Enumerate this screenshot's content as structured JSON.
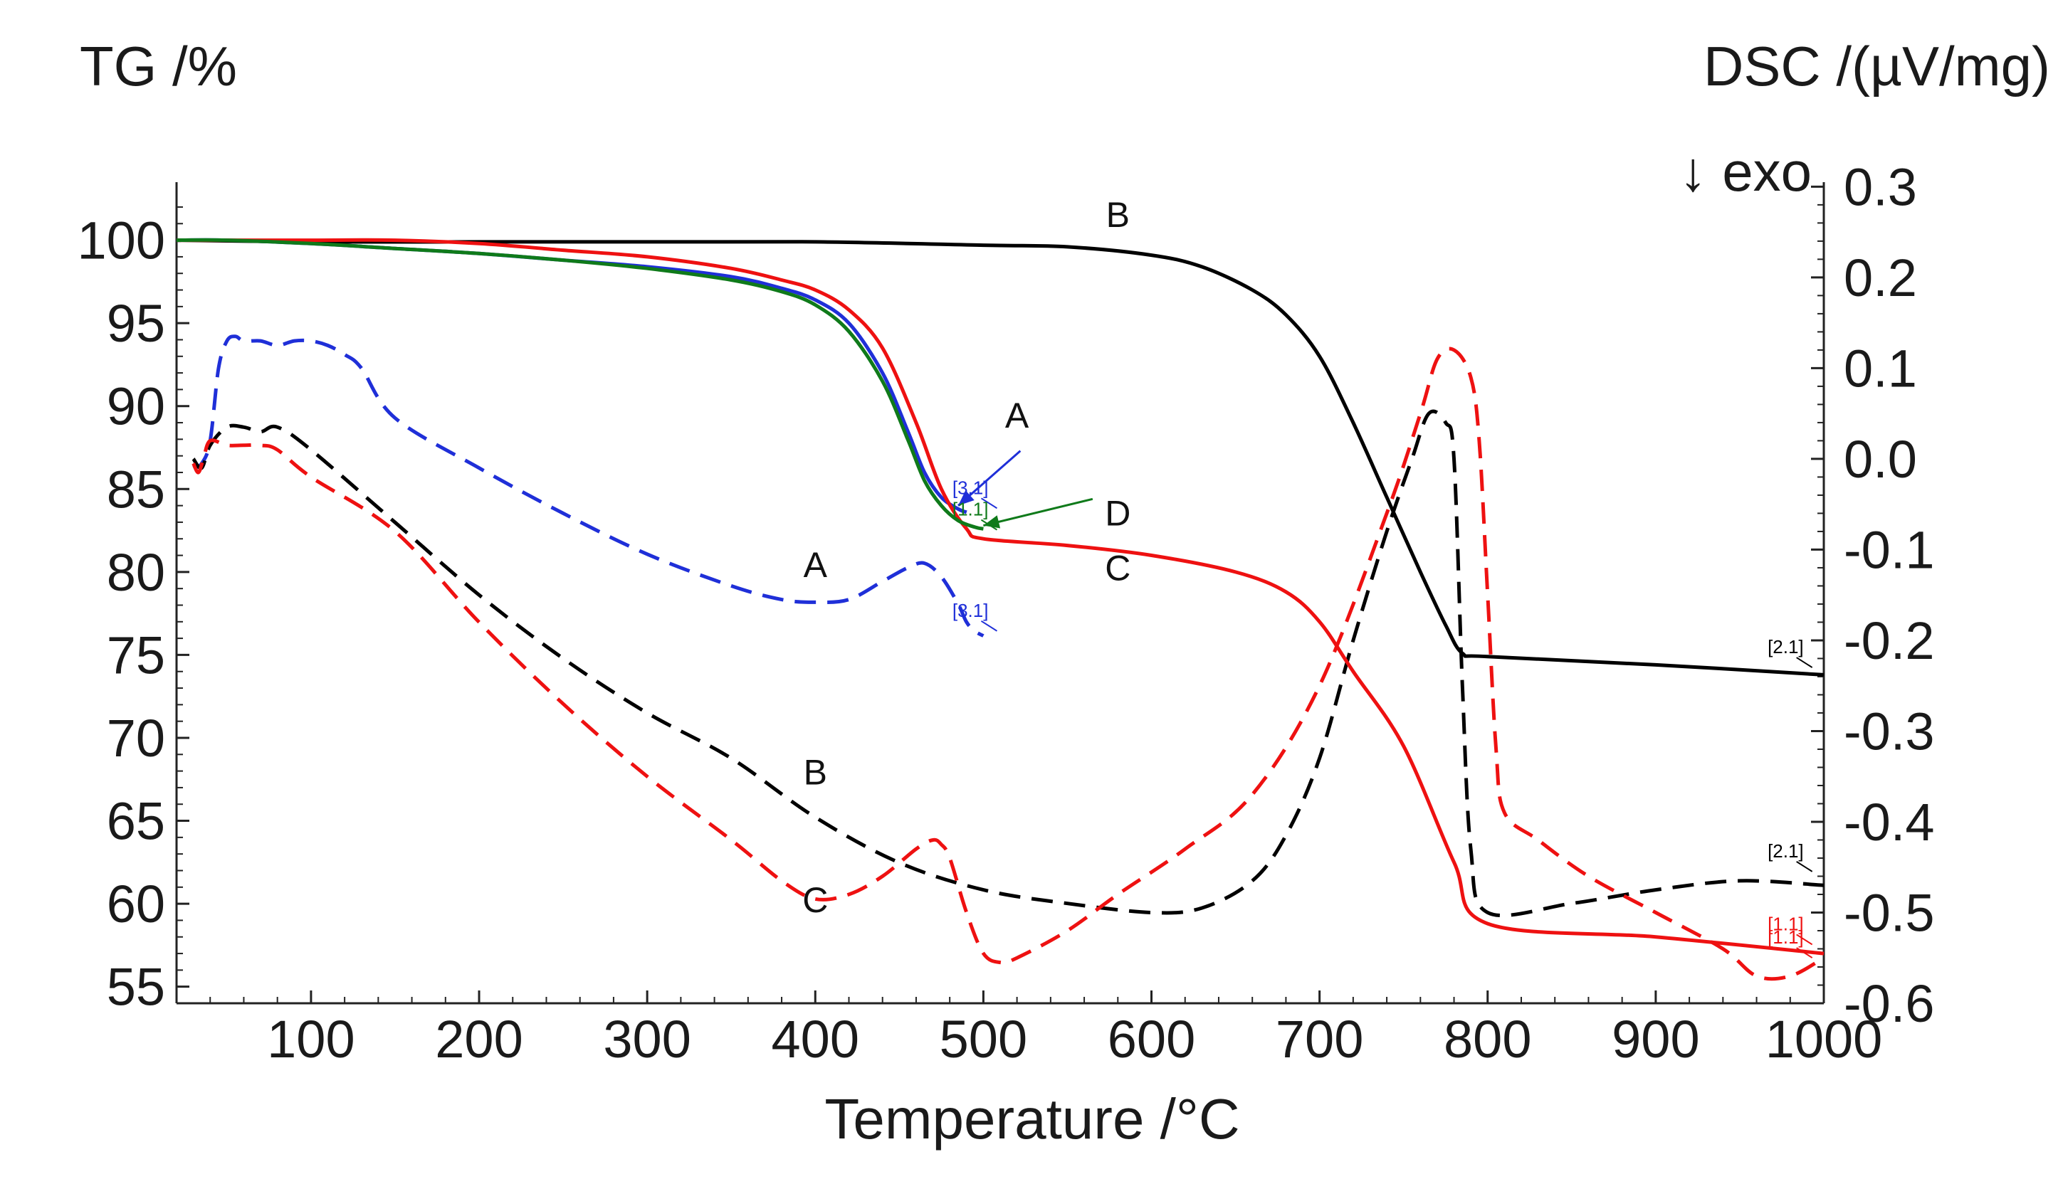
{
  "chart_data": {
    "type": "line",
    "title": "",
    "xlabel": "Temperature /°C",
    "ylabel_left": "TG /%",
    "ylabel_right": "DSC /(µV/mg)",
    "exo_label": "↓ exo",
    "xlim": [
      20,
      1000
    ],
    "ylim_left": [
      54,
      103.5
    ],
    "ylim_right": [
      -0.6,
      0.305
    ],
    "x_ticks": [
      100,
      200,
      300,
      400,
      500,
      600,
      700,
      800,
      900,
      1000
    ],
    "y_left_ticks": [
      55,
      60,
      65,
      70,
      75,
      80,
      85,
      90,
      95,
      100
    ],
    "y_right_ticks": [
      -0.6,
      -0.5,
      -0.4,
      -0.3,
      -0.2,
      -0.1,
      0.0,
      0.1,
      0.2,
      0.3
    ],
    "y_right_tick_labels": [
      "-0.6",
      "-0.5",
      "-0.4",
      "-0.3",
      "-0.2",
      "-0.1",
      "0.0",
      "0.1",
      "0.2",
      "0.3"
    ],
    "tg_series": [
      {
        "name": "TG A",
        "color": "#1f2fd8",
        "axis": "left",
        "x": [
          20,
          50,
          100,
          150,
          200,
          250,
          300,
          350,
          380,
          400,
          420,
          440,
          455,
          465,
          475,
          485,
          490
        ],
        "y": [
          100,
          100,
          99.8,
          99.5,
          99.2,
          98.8,
          98.4,
          97.8,
          97.1,
          96.4,
          95,
          92,
          88.5,
          86,
          84.5,
          83.8,
          83.6
        ]
      },
      {
        "name": "TG B",
        "color": "#000000",
        "axis": "left",
        "x": [
          20,
          100,
          200,
          300,
          400,
          500,
          550,
          600,
          630,
          660,
          680,
          700,
          720,
          740,
          760,
          775,
          785,
          800,
          900,
          1000
        ],
        "y": [
          100,
          99.9,
          99.9,
          99.9,
          99.9,
          99.7,
          99.6,
          99.1,
          98.4,
          97,
          95.5,
          93,
          89,
          84.5,
          80,
          76.8,
          75.1,
          74.9,
          74.4,
          73.8
        ]
      },
      {
        "name": "TG C",
        "color": "#ee1111",
        "axis": "left",
        "x": [
          20,
          100,
          150,
          200,
          250,
          300,
          350,
          380,
          400,
          420,
          440,
          460,
          475,
          490,
          500,
          550,
          600,
          650,
          680,
          700,
          720,
          750,
          780,
          800,
          900,
          1000
        ],
        "y": [
          100,
          100,
          100,
          99.8,
          99.4,
          99,
          98.3,
          97.6,
          97,
          95.8,
          93.5,
          89,
          85,
          82.6,
          82,
          81.6,
          81,
          80,
          78.8,
          77,
          74,
          69.5,
          62.5,
          58.8,
          58,
          57
        ]
      },
      {
        "name": "TG D",
        "color": "#0f7a1a",
        "axis": "left",
        "x": [
          20,
          50,
          100,
          150,
          200,
          250,
          300,
          350,
          380,
          400,
          420,
          440,
          455,
          465,
          475,
          485,
          495,
          500
        ],
        "y": [
          100,
          100,
          99.8,
          99.5,
          99.2,
          98.8,
          98.3,
          97.6,
          96.9,
          96.1,
          94.5,
          91.5,
          88,
          85.5,
          84,
          83.1,
          82.7,
          82.6
        ]
      }
    ],
    "dsc_series": [
      {
        "name": "DSC A",
        "color": "#1f2fd8",
        "axis": "right",
        "x": [
          30,
          35,
          40,
          45,
          50,
          55,
          60,
          70,
          80,
          90,
          100,
          110,
          120,
          130,
          150,
          200,
          250,
          300,
          350,
          380,
          400,
          420,
          440,
          455,
          465,
          475,
          485,
          490,
          495,
          500
        ],
        "y": [
          -0.01,
          -0.005,
          0.02,
          0.1,
          0.13,
          0.135,
          0.13,
          0.13,
          0.125,
          0.13,
          0.13,
          0.125,
          0.115,
          0.1,
          0.045,
          -0.01,
          -0.06,
          -0.105,
          -0.14,
          -0.155,
          -0.158,
          -0.155,
          -0.135,
          -0.12,
          -0.115,
          -0.13,
          -0.16,
          -0.18,
          -0.19,
          -0.195
        ]
      },
      {
        "name": "DSC B",
        "color": "#000000",
        "axis": "right",
        "x": [
          30,
          35,
          40,
          50,
          60,
          70,
          80,
          100,
          150,
          200,
          250,
          300,
          350,
          400,
          450,
          500,
          550,
          600,
          630,
          660,
          680,
          700,
          720,
          740,
          755,
          765,
          775,
          780,
          785,
          790,
          800,
          850,
          900,
          950,
          1000
        ],
        "y": [
          0.0,
          -0.01,
          0.015,
          0.035,
          0.035,
          0.03,
          0.035,
          0.01,
          -0.07,
          -0.15,
          -0.22,
          -0.28,
          -0.33,
          -0.395,
          -0.445,
          -0.475,
          -0.49,
          -0.5,
          -0.495,
          -0.465,
          -0.415,
          -0.33,
          -0.2,
          -0.08,
          0.0,
          0.05,
          0.04,
          0.0,
          -0.25,
          -0.43,
          -0.5,
          -0.49,
          -0.475,
          -0.465,
          -0.47
        ]
      },
      {
        "name": "DSC C",
        "color": "#ee1111",
        "axis": "right",
        "x": [
          30,
          33,
          36,
          40,
          50,
          60,
          70,
          80,
          100,
          150,
          200,
          250,
          300,
          350,
          380,
          400,
          420,
          440,
          460,
          470,
          475,
          480,
          490,
          500,
          510,
          520,
          550,
          580,
          620,
          660,
          700,
          740,
          760,
          770,
          780,
          790,
          795,
          800,
          805,
          810,
          830,
          860,
          900,
          940,
          960,
          980,
          1000
        ],
        "y": [
          -0.005,
          -0.015,
          0.0,
          0.02,
          0.015,
          0.015,
          0.015,
          0.01,
          -0.02,
          -0.08,
          -0.18,
          -0.27,
          -0.35,
          -0.42,
          -0.465,
          -0.485,
          -0.48,
          -0.46,
          -0.43,
          -0.42,
          -0.425,
          -0.44,
          -0.5,
          -0.545,
          -0.555,
          -0.55,
          -0.52,
          -0.48,
          -0.43,
          -0.37,
          -0.25,
          -0.06,
          0.05,
          0.11,
          0.12,
          0.09,
          0.02,
          -0.15,
          -0.32,
          -0.39,
          -0.42,
          -0.46,
          -0.5,
          -0.54,
          -0.57,
          -0.57,
          -0.55
        ]
      }
    ],
    "curve_labels": [
      {
        "text": "B",
        "x": 580,
        "y_left": 100.8
      },
      {
        "text": "A",
        "x": 520,
        "y_left": 88.7
      },
      {
        "text": "D",
        "x": 580,
        "y_left": 82.8
      },
      {
        "text": "C",
        "x": 580,
        "y_left": 79.5
      },
      {
        "text": "A",
        "x": 400,
        "y_left": 79.7
      },
      {
        "text": "B",
        "x": 400,
        "y_left": 67.2
      },
      {
        "text": "C",
        "x": 400,
        "y_left": 59.5
      }
    ],
    "end_markers": [
      {
        "text": "[3.1]",
        "x": 503,
        "y_left": 84.7,
        "color": "#1f2fd8"
      },
      {
        "text": "[1.1]",
        "x": 503,
        "y_left": 83.4,
        "color": "#0f7a1a"
      },
      {
        "text": "[3.1]",
        "x": 503,
        "y_left": 77.3,
        "color": "#1f2fd8"
      },
      {
        "text": "[2.1]",
        "x": 988,
        "y_left": 75.1,
        "color": "#000000"
      },
      {
        "text": "[2.1]",
        "x": 988,
        "y_left": 62.8,
        "color": "#000000"
      },
      {
        "text": "[1.1]",
        "x": 988,
        "y_left": 58.4,
        "color": "#ee1111"
      },
      {
        "text": "[1.1]",
        "x": 988,
        "y_left": 57.6,
        "color": "#ee1111"
      }
    ],
    "pointer_arrows": [
      {
        "label": "A",
        "color": "#1f2fd8",
        "from_x": 522,
        "from_y_left": 87.3,
        "to_x": 485,
        "to_y_left": 84.0
      },
      {
        "label": "D",
        "color": "#0f7a1a",
        "from_x": 565,
        "from_y_left": 84.4,
        "to_x": 500,
        "to_y_left": 82.8
      }
    ]
  }
}
